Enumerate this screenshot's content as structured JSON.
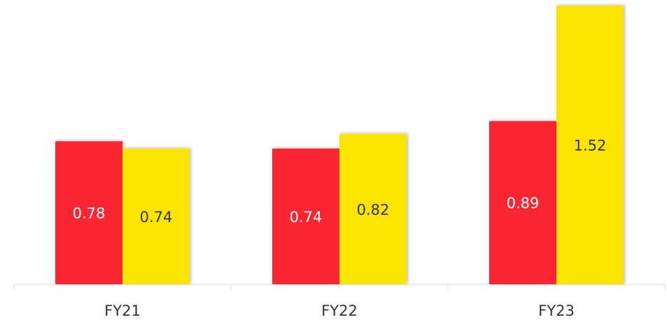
{
  "chart_data": {
    "type": "bar",
    "categories": [
      "FY21",
      "FY22",
      "FY23"
    ],
    "series": [
      {
        "color": "#fb2832",
        "values": [
          0.78,
          0.74,
          0.89
        ]
      },
      {
        "color": "#fbe504",
        "values": [
          0.74,
          0.82,
          1.52
        ]
      }
    ],
    "ylim": [
      0,
      1.52
    ]
  }
}
